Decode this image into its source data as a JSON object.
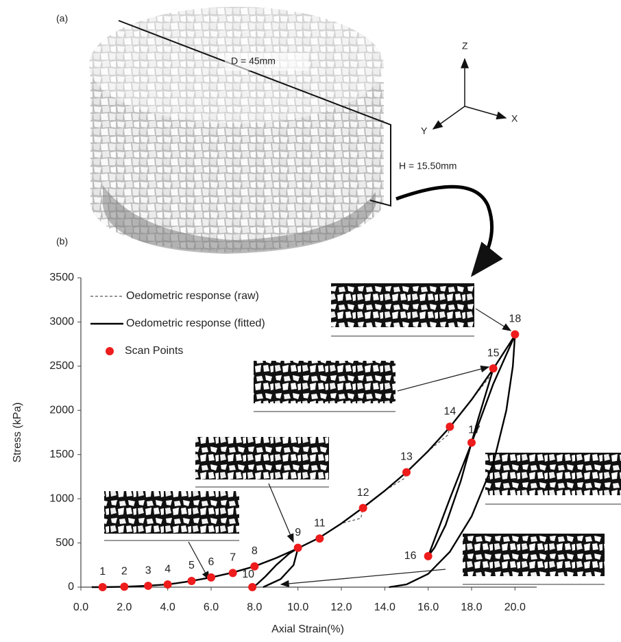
{
  "panel_a": {
    "label": "(a)",
    "diameter_label": "D = 45mm",
    "height_label": "H = 15.50mm",
    "axis_z": "Z",
    "axis_x": "X",
    "axis_y": "Y"
  },
  "chart_data": {
    "type": "line",
    "label": "(b)",
    "x_label": "Axial Strain(%)",
    "y_label": "Stress (kPa)",
    "xlim": [
      0,
      21
    ],
    "ylim": [
      0,
      3500
    ],
    "xticks": [
      {
        "value": 0,
        "label": "0.0"
      },
      {
        "value": 2,
        "label": "2.0"
      },
      {
        "value": 4,
        "label": "4.0"
      },
      {
        "value": 6,
        "label": "6.0"
      },
      {
        "value": 8,
        "label": "8.0"
      },
      {
        "value": 10,
        "label": "10.0"
      },
      {
        "value": 12,
        "label": "12.0"
      },
      {
        "value": 14,
        "label": "14.0"
      },
      {
        "value": 16,
        "label": "16.0"
      },
      {
        "value": 18,
        "label": "18.0"
      },
      {
        "value": 20,
        "label": "20.0"
      }
    ],
    "yticks": [
      0,
      500,
      1000,
      1500,
      2000,
      2500,
      3000,
      3500
    ],
    "grid": false,
    "legend": "top-left",
    "series": [
      {
        "name": "Oedometric response (raw)",
        "color": "#555555",
        "style": "dashed",
        "x": [
          0.5,
          1,
          2,
          3,
          4,
          5,
          6,
          7,
          8,
          9,
          10,
          11,
          12,
          12.9,
          13,
          14,
          14.9,
          15,
          16,
          16.9,
          17,
          18,
          18.9,
          19,
          20
        ],
        "values": [
          0,
          0,
          5,
          15,
          30,
          65,
          110,
          165,
          235,
          330,
          440,
          560,
          720,
          780,
          900,
          1090,
          1230,
          1300,
          1540,
          1720,
          1810,
          2120,
          2400,
          2470,
          2850
        ]
      },
      {
        "name": "Oedometric response (fitted)",
        "color": "#000000",
        "style": "solid",
        "x": [
          0.5,
          1,
          2,
          3,
          4,
          5,
          6,
          7,
          8,
          9,
          10,
          11,
          12,
          13,
          14,
          15,
          16,
          17,
          18,
          19,
          20,
          null,
          10,
          9.6,
          9.0,
          8.5,
          8.1,
          7.9,
          null,
          8.4,
          9.2,
          9.8,
          10,
          null,
          19,
          18.3,
          17.5,
          16.8,
          16.3,
          16,
          null,
          16,
          17,
          18,
          19,
          20,
          null,
          20,
          19.9,
          19.6,
          19,
          18,
          17,
          16,
          15,
          14.2
        ],
        "values": [
          0,
          0,
          5,
          15,
          30,
          65,
          110,
          165,
          235,
          330,
          440,
          560,
          720,
          900,
          1090,
          1300,
          1540,
          1810,
          2120,
          2470,
          2850,
          null,
          440,
          380,
          250,
          120,
          30,
          0,
          null,
          0,
          90,
          250,
          440,
          null,
          2470,
          1900,
          1200,
          700,
          450,
          350,
          null,
          350,
          1000,
          1630,
          2300,
          2850,
          null,
          2850,
          2500,
          2000,
          1400,
          800,
          400,
          150,
          30,
          0
        ]
      },
      {
        "name": "Scan Points",
        "color": "#ee1c1c",
        "style": "points",
        "x": [
          1,
          2,
          3.1,
          4,
          5.1,
          6,
          7,
          8,
          10,
          7.9,
          11,
          13,
          15,
          17,
          19,
          16,
          18,
          20
        ],
        "values": [
          0,
          5,
          15,
          30,
          70,
          110,
          160,
          235,
          445,
          0,
          550,
          895,
          1300,
          1815,
          2475,
          350,
          1635,
          2860
        ],
        "point_labels": [
          "1",
          "2",
          "3",
          "4",
          "5",
          "6",
          "7",
          "8",
          "9",
          "10",
          "11",
          "12",
          "13",
          "14",
          "15",
          "16",
          "17",
          "18"
        ]
      }
    ]
  }
}
